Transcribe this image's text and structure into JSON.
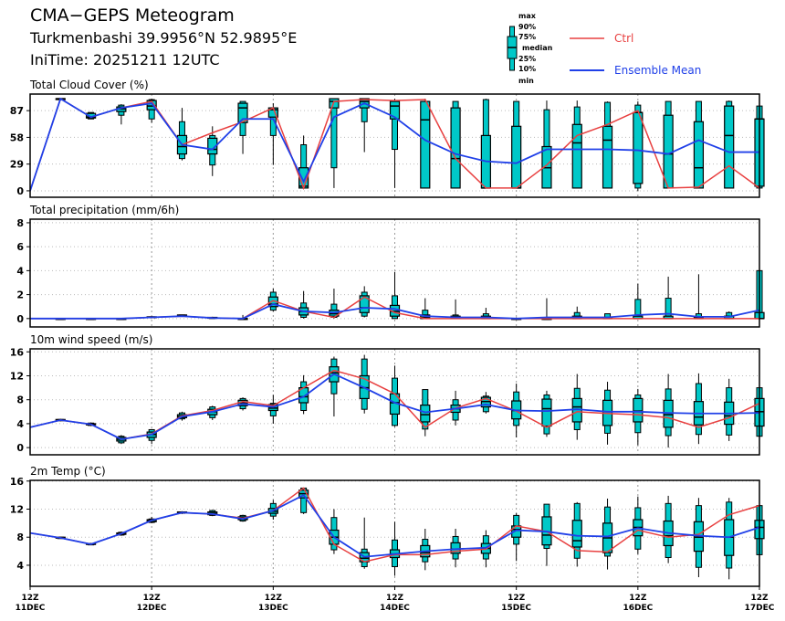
{
  "header": {
    "title": "CMA−GEPS Meteogram",
    "location": "Turkmenbashi 39.9956°N 52.9895°E",
    "init_time": "IniTime: 20251211 12UTC"
  },
  "legend": {
    "box_labels": [
      "max",
      "90%",
      "75%",
      "median",
      "25%",
      "10%",
      "min"
    ],
    "ctrl_label": "Ctrl",
    "mean_label": "Ensemble Mean",
    "ctrl_color": "#e84040",
    "mean_color": "#2040e8",
    "box_color": "#00c8c8"
  },
  "chart_data": [
    {
      "type": "boxplot-line",
      "title": "Total Cloud Cover (%)",
      "ylim": [
        -7,
        105
      ],
      "yticks": [
        0,
        29,
        58,
        87
      ],
      "ctrl": [
        0,
        100,
        80,
        90,
        97,
        50,
        63,
        75,
        90,
        3,
        97,
        99,
        98,
        99,
        35,
        3,
        3,
        28,
        60,
        72,
        87,
        3,
        4,
        27,
        3
      ],
      "mean": [
        0,
        100,
        80,
        90,
        95,
        50,
        45,
        78,
        78,
        10,
        80,
        95,
        80,
        55,
        40,
        32,
        30,
        45,
        45,
        45,
        44,
        40,
        55,
        42,
        42
      ],
      "boxes": [
        null,
        [
          98,
          99,
          99,
          100,
          100,
          100,
          100
        ],
        [
          78,
          78,
          79,
          80,
          84,
          85,
          85
        ],
        [
          72,
          82,
          86,
          89,
          91,
          93,
          94
        ],
        [
          74,
          78,
          88,
          92,
          98,
          99,
          100
        ],
        [
          33,
          35,
          40,
          48,
          60,
          75,
          90
        ],
        [
          16,
          28,
          40,
          45,
          57,
          60,
          70
        ],
        [
          40,
          60,
          74,
          90,
          95,
          97,
          97
        ],
        [
          28,
          60,
          80,
          88,
          90,
          90,
          95
        ],
        [
          2,
          3,
          3,
          5,
          25,
          50,
          60
        ],
        [
          3,
          25,
          90,
          97,
          100,
          100,
          100
        ],
        [
          42,
          75,
          90,
          97,
          100,
          100,
          100
        ],
        [
          3,
          45,
          78,
          92,
          97,
          97,
          100
        ],
        [
          3,
          3,
          3,
          77,
          97,
          97,
          100
        ],
        [
          3,
          3,
          3,
          35,
          90,
          97,
          97
        ],
        [
          3,
          3,
          3,
          3,
          60,
          99,
          100
        ],
        [
          3,
          3,
          3,
          3,
          70,
          97,
          97
        ],
        [
          3,
          3,
          3,
          25,
          48,
          88,
          98
        ],
        [
          3,
          3,
          3,
          52,
          72,
          91,
          98
        ],
        [
          3,
          3,
          3,
          55,
          70,
          96,
          97
        ],
        [
          0,
          3,
          8,
          85,
          85,
          93,
          97
        ],
        [
          3,
          3,
          3,
          40,
          82,
          97,
          97
        ],
        [
          3,
          3,
          3,
          25,
          75,
          97,
          97
        ],
        [
          3,
          3,
          3,
          60,
          92,
          97,
          98
        ],
        [
          3,
          3,
          5,
          78,
          78,
          92,
          92
        ]
      ]
    },
    {
      "type": "boxplot-line",
      "title": "Total precipitation (mm/6h)",
      "ylim": [
        -0.7,
        8.3
      ],
      "yticks": [
        0,
        2,
        4,
        6,
        8
      ],
      "ctrl": [
        0,
        0,
        0,
        0,
        0.1,
        0.2,
        0.05,
        0,
        1.5,
        0.6,
        0.1,
        1.8,
        0.5,
        0,
        0,
        0,
        0,
        0,
        0,
        0,
        0,
        0,
        0,
        0,
        0
      ],
      "mean": [
        0,
        0,
        0,
        0,
        0.1,
        0.2,
        0.05,
        0,
        1.2,
        0.6,
        0.5,
        0.9,
        0.8,
        0.2,
        0.1,
        0.1,
        0,
        0.1,
        0.1,
        0.1,
        0.3,
        0.4,
        0.15,
        0.15,
        0.7
      ],
      "boxes": [
        null,
        [
          0,
          0,
          0,
          0,
          0,
          0,
          0
        ],
        [
          0,
          0,
          0,
          0,
          0,
          0,
          0
        ],
        [
          0,
          0,
          0,
          0,
          0,
          0,
          0
        ],
        [
          0.05,
          0.1,
          0.1,
          0.1,
          0.15,
          0.15,
          0.2
        ],
        [
          0.15,
          0.2,
          0.2,
          0.25,
          0.3,
          0.3,
          0.3
        ],
        [
          0,
          0,
          0.05,
          0.05,
          0.1,
          0.1,
          0.15
        ],
        [
          0,
          0,
          0,
          0,
          0,
          0,
          0.3
        ],
        [
          0.6,
          0.7,
          1,
          1.2,
          1.8,
          2.2,
          2.5
        ],
        [
          0,
          0.1,
          0.3,
          0.6,
          0.9,
          1.3,
          2.3
        ],
        [
          0,
          0.1,
          0.2,
          0.4,
          0.7,
          1.2,
          2.5
        ],
        [
          0.1,
          0.2,
          0.5,
          0.9,
          1.9,
          2.2,
          2.7
        ],
        [
          0,
          0,
          0.2,
          0.6,
          1.1,
          1.9,
          3.9
        ],
        [
          0,
          0,
          0,
          0.1,
          0.3,
          0.7,
          1.7
        ],
        [
          0,
          0,
          0,
          0.05,
          0.2,
          0.3,
          1.6
        ],
        [
          0,
          0,
          0,
          0,
          0.2,
          0.4,
          0.9
        ],
        [
          0,
          0,
          0,
          0,
          0,
          0,
          0.1
        ],
        [
          0,
          0,
          0,
          0,
          0,
          0,
          1.7
        ],
        [
          0,
          0,
          0,
          0,
          0.2,
          0.5,
          1.0
        ],
        [
          0,
          0,
          0,
          0,
          0.1,
          0.4,
          0.4
        ],
        [
          0,
          0,
          0,
          0,
          0.2,
          1.6,
          2.9
        ],
        [
          0,
          0,
          0,
          0,
          0.2,
          1.7,
          3.5
        ],
        [
          0,
          0,
          0,
          0,
          0.1,
          0.4,
          3.7
        ],
        [
          0,
          0,
          0,
          0,
          0.2,
          0.5,
          0.6
        ],
        [
          0,
          0,
          0,
          0,
          0.5,
          4,
          4
        ]
      ]
    },
    {
      "type": "boxplot-line",
      "title": "10m wind speed (m/s)",
      "ylim": [
        -1.2,
        16.5
      ],
      "yticks": [
        0,
        4,
        8,
        12,
        16
      ],
      "ctrl": [
        3.4,
        4.6,
        3.9,
        1.4,
        2.3,
        5.3,
        6.2,
        7.7,
        7,
        10,
        12.9,
        11.5,
        9,
        3.4,
        6.6,
        8.2,
        6.1,
        3.4,
        6,
        5.7,
        5.5,
        5,
        3.4,
        5,
        7.4
      ],
      "mean": [
        3.4,
        4.6,
        3.9,
        1.4,
        2.2,
        5.2,
        6,
        7.3,
        6.8,
        8.5,
        12.3,
        10,
        7.5,
        5.9,
        6.5,
        7.2,
        6.2,
        6.1,
        6.4,
        6,
        6,
        5.8,
        5.7,
        5.7,
        5.8
      ],
      "boxes": [
        null,
        [
          4.4,
          4.5,
          4.5,
          4.6,
          4.7,
          4.7,
          4.8
        ],
        [
          3.6,
          3.7,
          3.8,
          3.9,
          4,
          4.1,
          4.2
        ],
        [
          0.6,
          0.8,
          1.1,
          1.4,
          1.7,
          1.9,
          2.1
        ],
        [
          0.6,
          1.2,
          1.7,
          2.2,
          2.6,
          3,
          3.1
        ],
        [
          4.5,
          4.8,
          5,
          5.2,
          5.5,
          5.8,
          6
        ],
        [
          4.6,
          5,
          5.5,
          6,
          6.4,
          6.8,
          7
        ],
        [
          6.2,
          6.5,
          7,
          7.5,
          7.9,
          8.2,
          8.4
        ],
        [
          4,
          5.3,
          6.2,
          6.6,
          7.2,
          7.4,
          8.8
        ],
        [
          5.6,
          6.2,
          7.5,
          8.5,
          10,
          11,
          12.1
        ],
        [
          5.2,
          9,
          11,
          12.5,
          13.5,
          14.8,
          15.2
        ],
        [
          5.7,
          6.4,
          8.2,
          10,
          12,
          14.8,
          15.5
        ],
        [
          3.5,
          3.7,
          5.6,
          7.5,
          9,
          11.6,
          13.7
        ],
        [
          1.9,
          3.1,
          4.3,
          5.5,
          7.1,
          9.7,
          9.7
        ],
        [
          3.7,
          4.6,
          5.9,
          6.5,
          7.1,
          8,
          9.5
        ],
        [
          5.7,
          6,
          6.8,
          7.7,
          8.4,
          8.6,
          9.3
        ],
        [
          1.7,
          3.7,
          4.8,
          6.2,
          7.8,
          9.3,
          10.7
        ],
        [
          1.8,
          2.3,
          3.6,
          6.5,
          8.1,
          8.8,
          9.5
        ],
        [
          1.3,
          3,
          4.3,
          6.8,
          8.2,
          9.9,
          12.3
        ],
        [
          0.5,
          2.4,
          3.7,
          6,
          7.9,
          9.6,
          11
        ],
        [
          0.4,
          2.5,
          4.3,
          6.1,
          8.2,
          8.8,
          9.8
        ],
        [
          0,
          2,
          3.4,
          5.5,
          7.9,
          9.8,
          12.3
        ],
        [
          0.6,
          2.2,
          3.8,
          5.1,
          7.7,
          10.7,
          12.4
        ],
        [
          1.1,
          2.1,
          3.9,
          5.3,
          7.6,
          10,
          11.5
        ],
        [
          1.9,
          1.9,
          3.6,
          6,
          8.2,
          10,
          10
        ]
      ]
    },
    {
      "type": "boxplot-line",
      "title": "2m Temp (°C)",
      "ylim": [
        1.0,
        16.1
      ],
      "yticks": [
        4,
        8,
        12,
        16
      ],
      "ctrl": [
        8.6,
        7.9,
        7,
        8.5,
        10.4,
        11.5,
        11.3,
        10.7,
        11.8,
        15,
        7,
        4.5,
        5.5,
        5.5,
        6,
        6.3,
        9.6,
        8.8,
        6.1,
        5.9,
        9,
        8,
        8.4,
        11.2,
        12.5
      ],
      "mean": [
        8.6,
        7.9,
        7,
        8.5,
        10.4,
        11.5,
        11.3,
        10.6,
        11.8,
        14,
        8,
        5.2,
        5.6,
        6,
        6.3,
        6.5,
        9,
        8.8,
        8.2,
        8.1,
        9.3,
        8.6,
        8.2,
        8,
        9.4
      ],
      "boxes": [
        null,
        [
          7.8,
          7.8,
          7.9,
          7.9,
          8,
          8,
          8
        ],
        [
          6.9,
          6.9,
          7,
          7,
          7.1,
          7.1,
          7.1
        ],
        [
          8.2,
          8.3,
          8.4,
          8.5,
          8.6,
          8.7,
          8.8
        ],
        [
          10,
          10.1,
          10.2,
          10.4,
          10.5,
          10.6,
          10.9
        ],
        [
          11.3,
          11.4,
          11.5,
          11.5,
          11.6,
          11.6,
          11.7
        ],
        [
          11,
          11.1,
          11.2,
          11.4,
          11.6,
          11.8,
          11.9
        ],
        [
          10.2,
          10.3,
          10.5,
          10.7,
          10.9,
          11.1,
          11.2
        ],
        [
          10.5,
          11,
          11.4,
          11.7,
          12.1,
          12.8,
          13.3
        ],
        [
          11.3,
          11.5,
          13.6,
          14.2,
          14.7,
          15,
          15
        ],
        [
          5.6,
          6.2,
          7,
          8,
          9,
          10.8,
          12
        ],
        [
          3.5,
          3.8,
          4.5,
          5,
          5.8,
          6.3,
          10.8
        ],
        [
          2.5,
          3.8,
          5.1,
          5.6,
          6.2,
          7.6,
          10.2
        ],
        [
          3.3,
          4.5,
          5.2,
          5.8,
          6.8,
          7.7,
          9.2
        ],
        [
          3.7,
          4.9,
          5.7,
          6.3,
          7.2,
          8.1,
          9.2
        ],
        [
          3.7,
          4.9,
          5.7,
          6.4,
          7.1,
          8.2,
          9
        ],
        [
          4.6,
          7,
          8,
          9.1,
          9.6,
          11.1,
          11.4
        ],
        [
          3.9,
          6.4,
          6.9,
          8.3,
          10.9,
          12.7,
          12.7
        ],
        [
          3.8,
          5,
          6.6,
          7.5,
          10.4,
          12.8,
          13
        ],
        [
          3.4,
          5.3,
          5.8,
          7.9,
          10,
          12.3,
          13.5
        ],
        [
          5.6,
          6.3,
          8.2,
          9.4,
          10.5,
          12.2,
          13.8
        ],
        [
          4.3,
          5.1,
          6.8,
          8.2,
          10.3,
          12.8,
          13.9
        ],
        [
          2.3,
          3.7,
          6,
          8,
          10.2,
          12.5,
          13.6
        ],
        [
          2,
          3.6,
          5.4,
          8,
          10.5,
          13,
          13.6
        ],
        [
          5.5,
          5.5,
          7.8,
          9.4,
          10.4,
          12.5,
          12.6
        ]
      ]
    }
  ],
  "x_axis": {
    "ticks": [
      {
        "time": "12Z",
        "date": "11DEC"
      },
      {
        "time": "12Z",
        "date": "12DEC"
      },
      {
        "time": "12Z",
        "date": "13DEC"
      },
      {
        "time": "12Z",
        "date": "14DEC"
      },
      {
        "time": "12Z",
        "date": "15DEC"
      },
      {
        "time": "12Z",
        "date": "16DEC"
      },
      {
        "time": "12Z",
        "date": "17DEC"
      }
    ],
    "step_hours": 6
  }
}
